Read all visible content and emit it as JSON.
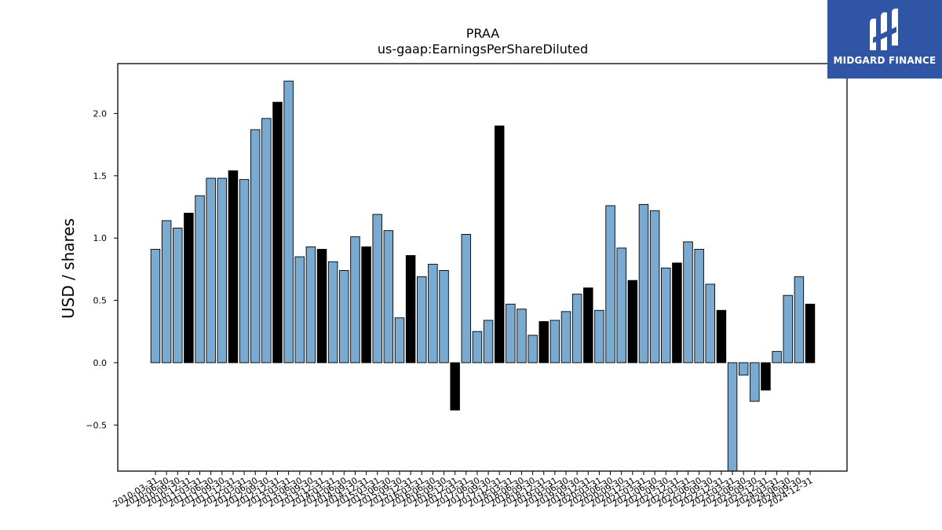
{
  "chart_data": {
    "type": "bar",
    "title": "PRAA",
    "subtitle": "us-gaap:EarningsPerShareDiluted",
    "xlabel": "",
    "ylabel": "USD / shares",
    "ylim": [
      -0.87,
      2.4
    ],
    "yticks": [
      "−0.5",
      "0.0",
      "0.5",
      "1.0",
      "1.5",
      "2.0"
    ],
    "grid": false,
    "colors": {
      "quarter": "#7aaad0",
      "annual": "#000000",
      "edge": "#000000"
    },
    "categories": [
      "2010-03-31",
      "2010-06-30",
      "2010-09-30",
      "2010-12-31",
      "2011-03-31",
      "2011-06-30",
      "2011-09-30",
      "2011-12-31",
      "2012-03-31",
      "2012-06-30",
      "2012-09-30",
      "2012-12-31",
      "2013-03-31",
      "2013-06-30",
      "2013-09-30",
      "2013-12-31",
      "2014-03-31",
      "2014-06-30",
      "2014-09-30",
      "2014-12-31",
      "2015-03-31",
      "2015-06-30",
      "2015-09-30",
      "2015-12-31",
      "2016-03-31",
      "2016-06-30",
      "2016-09-30",
      "2016-12-31",
      "2017-03-31",
      "2017-06-30",
      "2017-09-30",
      "2017-12-31",
      "2018-03-31",
      "2018-06-30",
      "2018-09-30",
      "2018-12-31",
      "2019-03-31",
      "2019-06-30",
      "2019-09-30",
      "2019-12-31",
      "2020-03-31",
      "2020-06-30",
      "2020-09-30",
      "2020-12-31",
      "2021-03-31",
      "2021-06-30",
      "2021-09-30",
      "2021-12-31",
      "2022-03-31",
      "2022-06-30",
      "2022-09-30",
      "2022-12-31",
      "2023-03-31",
      "2023-06-30",
      "2023-09-30",
      "2023-12-31",
      "2024-03-31",
      "2024-06-30",
      "2024-09-30",
      "2024-12-31"
    ],
    "series": [
      {
        "values": [
          0.91,
          1.14,
          1.08,
          1.2,
          1.34,
          1.48,
          1.48,
          1.54,
          1.47,
          1.87,
          1.96,
          2.09,
          2.26,
          0.85,
          0.93,
          0.91,
          0.81,
          0.74,
          1.01,
          0.93,
          1.19,
          1.06,
          0.36,
          0.86,
          0.69,
          0.79,
          0.74,
          -0.38,
          1.03,
          0.25,
          0.34,
          1.9,
          0.47,
          0.43,
          0.22,
          0.33,
          0.34,
          0.41,
          0.55,
          0.6,
          0.42,
          1.26,
          0.92,
          0.66,
          1.27,
          1.22,
          0.76,
          0.8,
          0.97,
          0.91,
          0.63,
          0.42,
          -0.88,
          -0.1,
          -0.31,
          -0.22,
          0.09,
          0.54,
          0.69,
          0.47
        ],
        "annual": [
          false,
          false,
          false,
          true,
          false,
          false,
          false,
          true,
          false,
          false,
          false,
          true,
          false,
          false,
          false,
          true,
          false,
          false,
          false,
          true,
          false,
          false,
          false,
          true,
          false,
          false,
          false,
          true,
          false,
          false,
          false,
          true,
          false,
          false,
          false,
          true,
          false,
          false,
          false,
          true,
          false,
          false,
          false,
          true,
          false,
          false,
          false,
          true,
          false,
          false,
          false,
          true,
          false,
          false,
          false,
          true,
          false,
          false,
          false,
          true
        ]
      }
    ]
  },
  "logo": {
    "text": "MIDGARD FINANCE",
    "icon": "midgard-logo-icon"
  }
}
